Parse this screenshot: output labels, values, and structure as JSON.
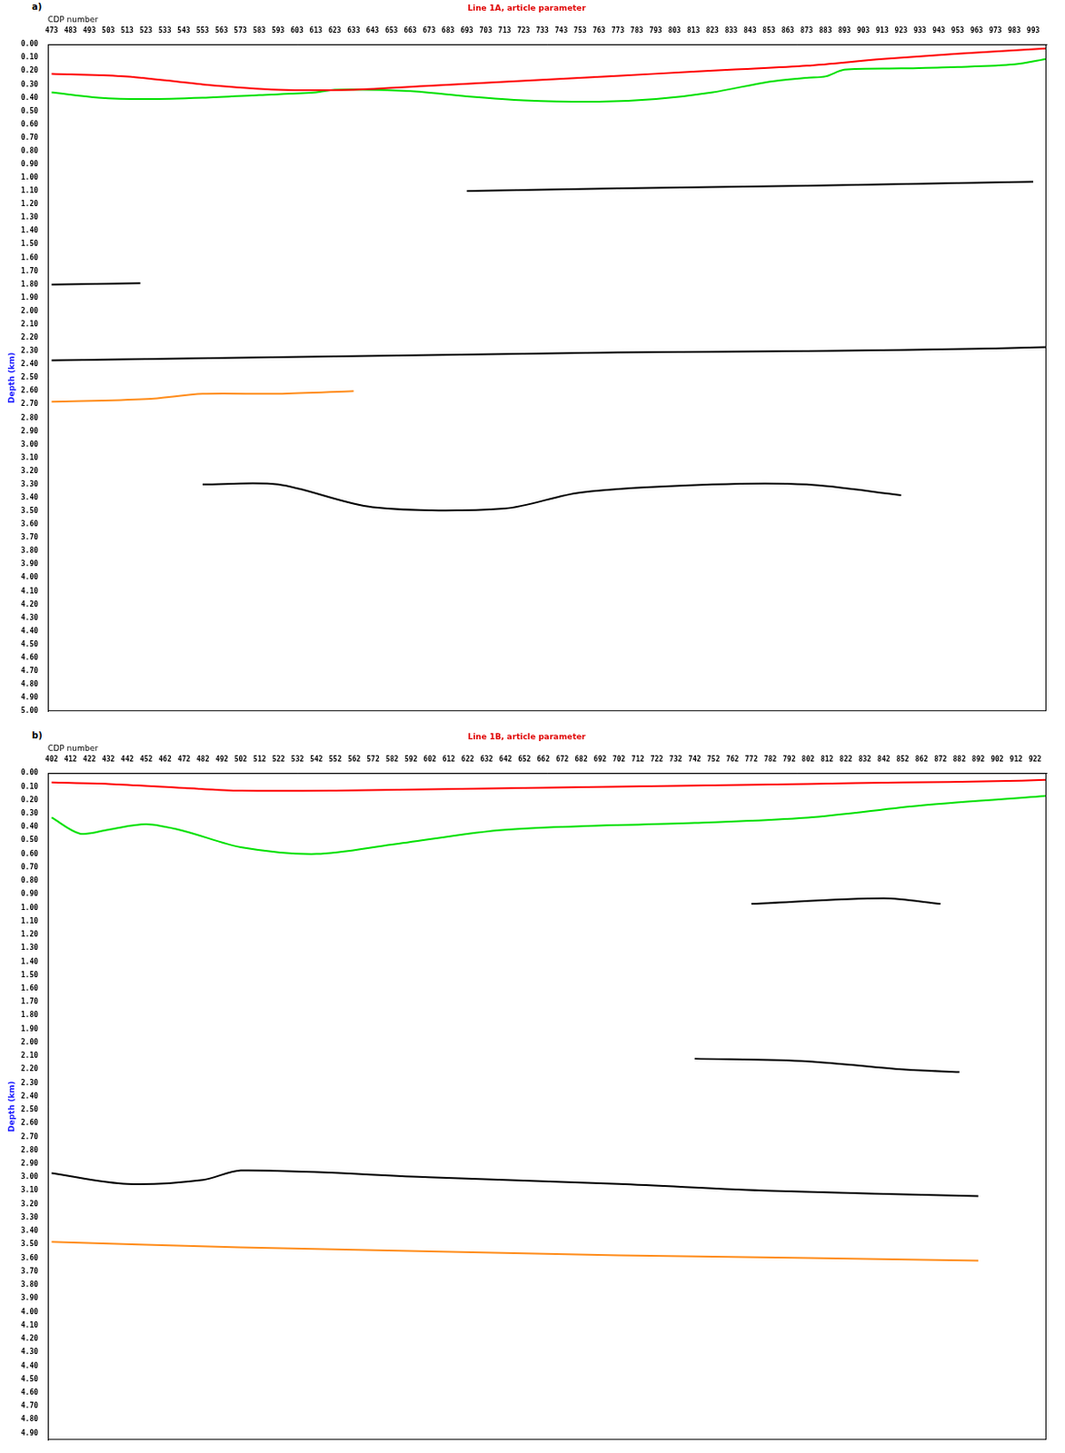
{
  "chart_data": [
    {
      "type": "line",
      "panel": "a)",
      "title": "Line 1A, article parameter",
      "x_label": "CDP number",
      "y_label": "Depth (km)",
      "grid": false,
      "xlim": [
        471,
        1000
      ],
      "xticks": [
        473,
        483,
        493,
        503,
        513,
        523,
        533,
        543,
        553,
        563,
        573,
        583,
        593,
        603,
        613,
        623,
        633,
        643,
        653,
        663,
        673,
        683,
        693,
        703,
        713,
        723,
        733,
        743,
        753,
        763,
        773,
        783,
        793,
        803,
        813,
        823,
        833,
        843,
        853,
        863,
        873,
        883,
        893,
        903,
        913,
        923,
        933,
        943,
        953,
        963,
        973,
        983,
        993
      ],
      "ylim": [
        0,
        5
      ],
      "yticks": [
        {
          "value": 0,
          "label": "0.00"
        },
        {
          "value": 0.1,
          "label": "0.10"
        },
        {
          "value": 0.2,
          "label": "0.20"
        },
        {
          "value": 0.3,
          "label": "0.30"
        },
        {
          "value": 0.4,
          "label": "0.40"
        },
        {
          "value": 0.5,
          "label": "0.50"
        },
        {
          "value": 0.6,
          "label": "0.60"
        },
        {
          "value": 0.7,
          "label": "0.70"
        },
        {
          "value": 0.8,
          "label": "0.80"
        },
        {
          "value": 0.9,
          "label": "0.90"
        },
        {
          "value": 1,
          "label": "1.00"
        },
        {
          "value": 1.1,
          "label": "1.10"
        },
        {
          "value": 1.2,
          "label": "1.20"
        },
        {
          "value": 1.3,
          "label": "1.30"
        },
        {
          "value": 1.4,
          "label": "1.40"
        },
        {
          "value": 1.5,
          "label": "1.50"
        },
        {
          "value": 1.6,
          "label": "1.60"
        },
        {
          "value": 1.7,
          "label": "1.70"
        },
        {
          "value": 1.8,
          "label": "1.80"
        },
        {
          "value": 1.9,
          "label": "1.90"
        },
        {
          "value": 2,
          "label": "2.00"
        },
        {
          "value": 2.1,
          "label": "2.10"
        },
        {
          "value": 2.2,
          "label": "2.20"
        },
        {
          "value": 2.3,
          "label": "2.30"
        },
        {
          "value": 2.4,
          "label": "2.40"
        },
        {
          "value": 2.5,
          "label": "2.50"
        },
        {
          "value": 2.6,
          "label": "2.60"
        },
        {
          "value": 2.7,
          "label": "2.70"
        },
        {
          "value": 2.8,
          "label": "2.80"
        },
        {
          "value": 2.9,
          "label": "2.90"
        },
        {
          "value": 3,
          "label": "3.00"
        },
        {
          "value": 3.1,
          "label": "3.10"
        },
        {
          "value": 3.2,
          "label": "3.20"
        },
        {
          "value": 3.3,
          "label": "3.30"
        },
        {
          "value": 3.4,
          "label": "3.40"
        },
        {
          "value": 3.5,
          "label": "3.50"
        },
        {
          "value": 3.6,
          "label": "3.60"
        },
        {
          "value": 3.7,
          "label": "3.70"
        },
        {
          "value": 3.8,
          "label": "3.80"
        },
        {
          "value": 3.9,
          "label": "3.90"
        },
        {
          "value": 4,
          "label": "4.00"
        },
        {
          "value": 4.1,
          "label": "4.10"
        },
        {
          "value": 4.2,
          "label": "4.20"
        },
        {
          "value": 4.3,
          "label": "4.30"
        },
        {
          "value": 4.4,
          "label": "4.40"
        },
        {
          "value": 4.5,
          "label": "4.50"
        },
        {
          "value": 4.6,
          "label": "4.60"
        },
        {
          "value": 4.7,
          "label": "4.70"
        },
        {
          "value": 4.8,
          "label": "4.80"
        },
        {
          "value": 4.9,
          "label": "4.90"
        },
        {
          "value": 5,
          "label": "5.00"
        }
      ],
      "series": [
        {
          "color": "#ff0000",
          "x": [
            473,
            513,
            553,
            593,
            633,
            673,
            713,
            753,
            793,
            833,
            873,
            913,
            953,
            1000
          ],
          "values": [
            0.22,
            0.24,
            0.3,
            0.34,
            0.34,
            0.31,
            0.28,
            0.25,
            0.22,
            0.19,
            0.16,
            0.11,
            0.07,
            0.03
          ]
        },
        {
          "color": "#00e000",
          "x": [
            473,
            498,
            523,
            553,
            583,
            613,
            623,
            663,
            693,
            723,
            763,
            793,
            823,
            853,
            873,
            883,
            893,
            923,
            953,
            983,
            1000
          ],
          "values": [
            0.36,
            0.4,
            0.41,
            0.4,
            0.38,
            0.36,
            0.34,
            0.35,
            0.39,
            0.42,
            0.43,
            0.41,
            0.36,
            0.28,
            0.25,
            0.24,
            0.19,
            0.18,
            0.17,
            0.15,
            0.11
          ]
        },
        {
          "color": "#000000",
          "x": [
            473,
            573,
            673,
            773,
            873,
            973,
            1000
          ],
          "values": [
            2.37,
            2.35,
            2.33,
            2.31,
            2.3,
            2.28,
            2.27
          ]
        },
        {
          "color": "#000000",
          "x": [
            693,
            773,
            873,
            993
          ],
          "values": [
            1.1,
            1.08,
            1.06,
            1.03
          ]
        },
        {
          "color": "#000000",
          "x": [
            473,
            520
          ],
          "values": [
            1.8,
            1.79
          ]
        },
        {
          "color": "#ff8c1a",
          "x": [
            473,
            523,
            553,
            593,
            633
          ],
          "values": [
            2.68,
            2.66,
            2.62,
            2.62,
            2.6
          ]
        },
        {
          "color": "#000000",
          "x": [
            553,
            593,
            643,
            713,
            753,
            823,
            873,
            923
          ],
          "values": [
            3.3,
            3.3,
            3.47,
            3.48,
            3.36,
            3.3,
            3.3,
            3.38
          ]
        }
      ]
    },
    {
      "type": "line",
      "panel": "b)",
      "title": "Line 1B, article parameter",
      "x_label": "CDP number",
      "y_label": "Depth (km)",
      "grid": false,
      "xlim": [
        400,
        928
      ],
      "xticks": [
        402,
        412,
        422,
        432,
        442,
        452,
        462,
        472,
        482,
        492,
        502,
        512,
        522,
        532,
        542,
        552,
        562,
        572,
        582,
        592,
        602,
        612,
        622,
        632,
        642,
        652,
        662,
        672,
        682,
        692,
        702,
        712,
        722,
        732,
        742,
        752,
        762,
        772,
        782,
        792,
        802,
        812,
        822,
        832,
        842,
        852,
        862,
        872,
        882,
        892,
        902,
        912,
        922
      ],
      "ylim": [
        0,
        4.95
      ],
      "yticks": [
        {
          "value": 0,
          "label": "0.00"
        },
        {
          "value": 0.1,
          "label": "0.10"
        },
        {
          "value": 0.2,
          "label": "0.20"
        },
        {
          "value": 0.3,
          "label": "0.30"
        },
        {
          "value": 0.4,
          "label": "0.40"
        },
        {
          "value": 0.5,
          "label": "0.50"
        },
        {
          "value": 0.6,
          "label": "0.60"
        },
        {
          "value": 0.7,
          "label": "0.70"
        },
        {
          "value": 0.8,
          "label": "0.80"
        },
        {
          "value": 0.9,
          "label": "0.90"
        },
        {
          "value": 1,
          "label": "1.00"
        },
        {
          "value": 1.1,
          "label": "1.10"
        },
        {
          "value": 1.2,
          "label": "1.20"
        },
        {
          "value": 1.3,
          "label": "1.30"
        },
        {
          "value": 1.4,
          "label": "1.40"
        },
        {
          "value": 1.5,
          "label": "1.50"
        },
        {
          "value": 1.6,
          "label": "1.60"
        },
        {
          "value": 1.7,
          "label": "1.70"
        },
        {
          "value": 1.8,
          "label": "1.80"
        },
        {
          "value": 1.9,
          "label": "1.90"
        },
        {
          "value": 2,
          "label": "2.00"
        },
        {
          "value": 2.1,
          "label": "2.10"
        },
        {
          "value": 2.2,
          "label": "2.20"
        },
        {
          "value": 2.3,
          "label": "2.30"
        },
        {
          "value": 2.4,
          "label": "2.40"
        },
        {
          "value": 2.5,
          "label": "2.50"
        },
        {
          "value": 2.6,
          "label": "2.60"
        },
        {
          "value": 2.7,
          "label": "2.70"
        },
        {
          "value": 2.8,
          "label": "2.80"
        },
        {
          "value": 2.9,
          "label": "2.90"
        },
        {
          "value": 3,
          "label": "3.00"
        },
        {
          "value": 3.1,
          "label": "3.10"
        },
        {
          "value": 3.2,
          "label": "3.20"
        },
        {
          "value": 3.3,
          "label": "3.30"
        },
        {
          "value": 3.4,
          "label": "3.40"
        },
        {
          "value": 3.5,
          "label": "3.50"
        },
        {
          "value": 3.6,
          "label": "3.60"
        },
        {
          "value": 3.7,
          "label": "3.70"
        },
        {
          "value": 3.8,
          "label": "3.80"
        },
        {
          "value": 3.9,
          "label": "3.90"
        },
        {
          "value": 4,
          "label": "4.00"
        },
        {
          "value": 4.1,
          "label": "4.10"
        },
        {
          "value": 4.2,
          "label": "4.20"
        },
        {
          "value": 4.3,
          "label": "4.30"
        },
        {
          "value": 4.4,
          "label": "4.40"
        },
        {
          "value": 4.5,
          "label": "4.50"
        },
        {
          "value": 4.6,
          "label": "4.60"
        },
        {
          "value": 4.7,
          "label": "4.70"
        },
        {
          "value": 4.8,
          "label": "4.80"
        },
        {
          "value": 4.9,
          "label": "4.90"
        }
      ],
      "series": [
        {
          "color": "#ff0000",
          "x": [
            402,
            432,
            472,
            502,
            552,
            602,
            652,
            702,
            752,
            802,
            852,
            902,
            928
          ],
          "values": [
            0.07,
            0.08,
            0.11,
            0.13,
            0.13,
            0.12,
            0.11,
            0.1,
            0.09,
            0.08,
            0.07,
            0.06,
            0.05
          ]
        },
        {
          "color": "#00e000",
          "x": [
            402,
            417,
            432,
            452,
            472,
            502,
            542,
            582,
            642,
            742,
            802,
            862,
            928
          ],
          "values": [
            0.33,
            0.45,
            0.42,
            0.38,
            0.43,
            0.55,
            0.6,
            0.53,
            0.42,
            0.37,
            0.33,
            0.24,
            0.17
          ]
        },
        {
          "color": "#000000",
          "x": [
            402,
            442,
            482,
            502,
            602,
            702,
            782,
            892
          ],
          "values": [
            2.97,
            3.05,
            3.02,
            2.95,
            3.0,
            3.05,
            3.1,
            3.14
          ]
        },
        {
          "color": "#000000",
          "x": [
            742,
            802,
            852,
            882
          ],
          "values": [
            2.12,
            2.14,
            2.2,
            2.22
          ]
        },
        {
          "color": "#ff8c1a",
          "x": [
            402,
            502,
            602,
            702,
            802,
            892
          ],
          "values": [
            3.48,
            3.52,
            3.55,
            3.58,
            3.6,
            3.62
          ]
        },
        {
          "color": "#000000",
          "x": [
            772,
            842,
            872
          ],
          "values": [
            0.97,
            0.93,
            0.97
          ]
        }
      ]
    }
  ]
}
